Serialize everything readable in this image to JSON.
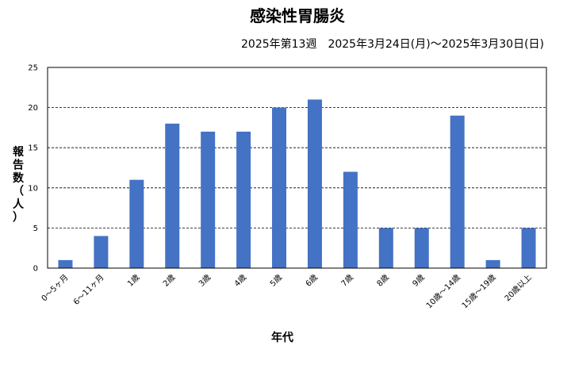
{
  "chart_data": {
    "type": "bar",
    "title": "感染性胃腸炎",
    "subtitle": "2025年第13週　2025年3月24日(月)～2025年3月30日(日)",
    "xlabel": "年代",
    "ylabel": "報告数（人）",
    "ylim": [
      0,
      25
    ],
    "yticks": [
      0,
      5,
      10,
      15,
      20,
      25
    ],
    "grid": true,
    "categories": [
      "0～5ヶ月",
      "6～11ヶ月",
      "1歳",
      "2歳",
      "3歳",
      "4歳",
      "5歳",
      "6歳",
      "7歳",
      "8歳",
      "9歳",
      "10歳～14歳",
      "15歳～19歳",
      "20歳以上"
    ],
    "values": [
      1,
      4,
      11,
      18,
      17,
      17,
      20,
      21,
      12,
      5,
      5,
      19,
      1,
      5
    ],
    "bar_color": "#4472c4"
  }
}
